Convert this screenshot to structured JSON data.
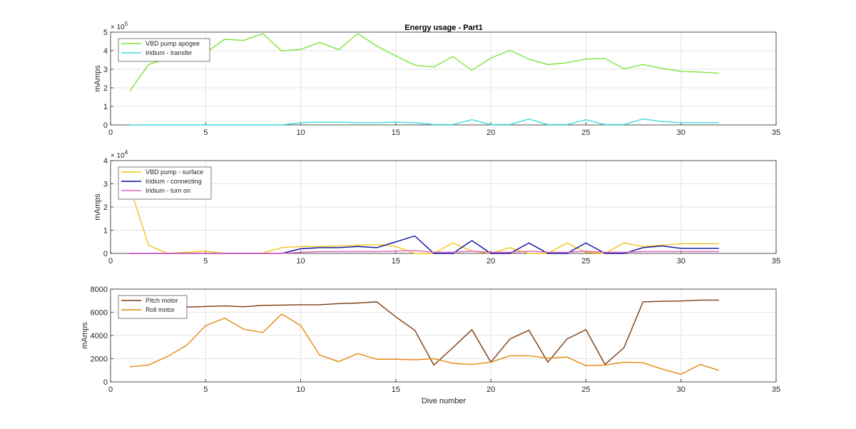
{
  "figure": {
    "title": "Energy usage - Part1",
    "xlabel": "Dive number"
  },
  "chart_data": [
    {
      "type": "line",
      "title": "Energy usage - Part1",
      "xlabel": "",
      "ylabel": "mAmps",
      "exponent": "5",
      "exponent_prefix": "× 10",
      "xlim": [
        0,
        35
      ],
      "ylim": [
        0,
        5
      ],
      "xticks": [
        0,
        5,
        10,
        15,
        20,
        25,
        30,
        35
      ],
      "yticks": [
        0,
        1,
        2,
        3,
        4,
        5
      ],
      "grid": true,
      "legend_position": "top-left",
      "x": [
        1,
        2,
        3,
        4,
        5,
        6,
        7,
        8,
        9,
        10,
        11,
        12,
        13,
        14,
        15,
        16,
        17,
        18,
        19,
        20,
        21,
        22,
        23,
        24,
        25,
        26,
        27,
        28,
        29,
        30,
        31,
        32
      ],
      "series": [
        {
          "name": "VBD pump apogee",
          "color": "#7fe43a",
          "values": [
            1.82,
            3.25,
            3.6,
            3.72,
            3.88,
            4.62,
            4.55,
            4.92,
            3.98,
            4.07,
            4.45,
            4.05,
            4.92,
            4.25,
            3.72,
            3.22,
            3.12,
            3.68,
            2.95,
            3.6,
            4.02,
            3.55,
            3.25,
            3.35,
            3.55,
            3.58,
            3.02,
            3.25,
            3.05,
            2.88,
            2.85,
            2.78
          ]
        },
        {
          "name": "Iridium - transfer",
          "color": "#3ed8e0",
          "values": [
            0,
            0,
            0,
            0,
            0,
            0,
            0,
            0,
            0,
            0.12,
            0.15,
            0.15,
            0.12,
            0.12,
            0.15,
            0.12,
            0.02,
            0.02,
            0.28,
            0.02,
            0.02,
            0.32,
            0.02,
            0.02,
            0.28,
            0.02,
            0.02,
            0.32,
            0.18,
            0.12,
            0.12,
            0.12
          ]
        }
      ]
    },
    {
      "type": "line",
      "xlabel": "",
      "ylabel": "mAmps",
      "exponent": "4",
      "exponent_prefix": "× 10",
      "xlim": [
        0,
        35
      ],
      "ylim": [
        0,
        4
      ],
      "xticks": [
        0,
        5,
        10,
        15,
        20,
        25,
        30,
        35
      ],
      "yticks": [
        0,
        1,
        2,
        3,
        4
      ],
      "grid": true,
      "legend_position": "top-left",
      "x": [
        1,
        2,
        3,
        4,
        5,
        6,
        7,
        8,
        9,
        10,
        11,
        12,
        13,
        14,
        15,
        16,
        17,
        18,
        19,
        20,
        21,
        22,
        23,
        24,
        25,
        26,
        27,
        28,
        29,
        30,
        31,
        32
      ],
      "series": [
        {
          "name": "VBD pump - surface",
          "color": "#f0c419",
          "values": [
            2.9,
            0.35,
            0.0,
            0.05,
            0.1,
            0.0,
            0.0,
            0.02,
            0.25,
            0.3,
            0.3,
            0.32,
            0.35,
            0.38,
            0.3,
            0.0,
            0.0,
            0.45,
            0.1,
            0.0,
            0.25,
            0.0,
            0.0,
            0.45,
            0.05,
            0.0,
            0.45,
            0.3,
            0.35,
            0.42,
            0.42,
            0.42
          ]
        },
        {
          "name": "Iridium - connecting",
          "color": "#0a0a9e",
          "values": [
            0,
            0,
            0,
            0,
            0,
            0,
            0,
            0,
            0,
            0.2,
            0.25,
            0.25,
            0.3,
            0.25,
            0.5,
            0.75,
            0.0,
            0.0,
            0.55,
            0.0,
            0.0,
            0.45,
            0.0,
            0.0,
            0.45,
            0.0,
            0.0,
            0.25,
            0.32,
            0.22,
            0.22,
            0.22
          ]
        },
        {
          "name": "Iridium - turn on",
          "color": "#e060c0",
          "values": [
            0,
            0,
            0,
            0,
            0,
            0,
            0,
            0,
            0,
            0.05,
            0.08,
            0.08,
            0.08,
            0.08,
            0.1,
            0.12,
            0.05,
            0.05,
            0.1,
            0.05,
            0.05,
            0.1,
            0.05,
            0.05,
            0.1,
            0.05,
            0.05,
            0.08,
            0.08,
            0.08,
            0.08,
            0.08
          ]
        }
      ]
    },
    {
      "type": "line",
      "xlabel": "Dive number",
      "ylabel": "mAmps",
      "xlim": [
        0,
        35
      ],
      "ylim": [
        0,
        8000
      ],
      "xticks": [
        0,
        5,
        10,
        15,
        20,
        25,
        30,
        35
      ],
      "yticks": [
        0,
        2000,
        4000,
        6000,
        8000
      ],
      "grid": true,
      "legend_position": "top-left",
      "x": [
        1,
        2,
        3,
        4,
        5,
        6,
        7,
        8,
        9,
        10,
        11,
        12,
        13,
        14,
        15,
        16,
        17,
        18,
        19,
        20,
        21,
        22,
        23,
        24,
        25,
        26,
        27,
        28,
        29,
        30,
        31,
        32
      ],
      "series": [
        {
          "name": "Pitch motor",
          "color": "#7a3a10",
          "values": [
            6200,
            6300,
            6400,
            6450,
            6500,
            6550,
            6480,
            6600,
            6620,
            6650,
            6650,
            6750,
            6800,
            6900,
            5600,
            4450,
            1450,
            2950,
            4500,
            1700,
            3700,
            4450,
            1700,
            3700,
            4500,
            1500,
            2950,
            6900,
            6950,
            6970,
            7050,
            7050
          ]
        },
        {
          "name": "Roll motor",
          "color": "#e5870c",
          "values": [
            1300,
            1450,
            2200,
            3150,
            4850,
            5500,
            4550,
            4250,
            5850,
            4850,
            2300,
            1750,
            2450,
            1950,
            1950,
            1900,
            2000,
            1600,
            1500,
            1700,
            2250,
            2250,
            2050,
            2150,
            1400,
            1450,
            1700,
            1650,
            1100,
            650,
            1500,
            1000
          ]
        }
      ]
    }
  ]
}
